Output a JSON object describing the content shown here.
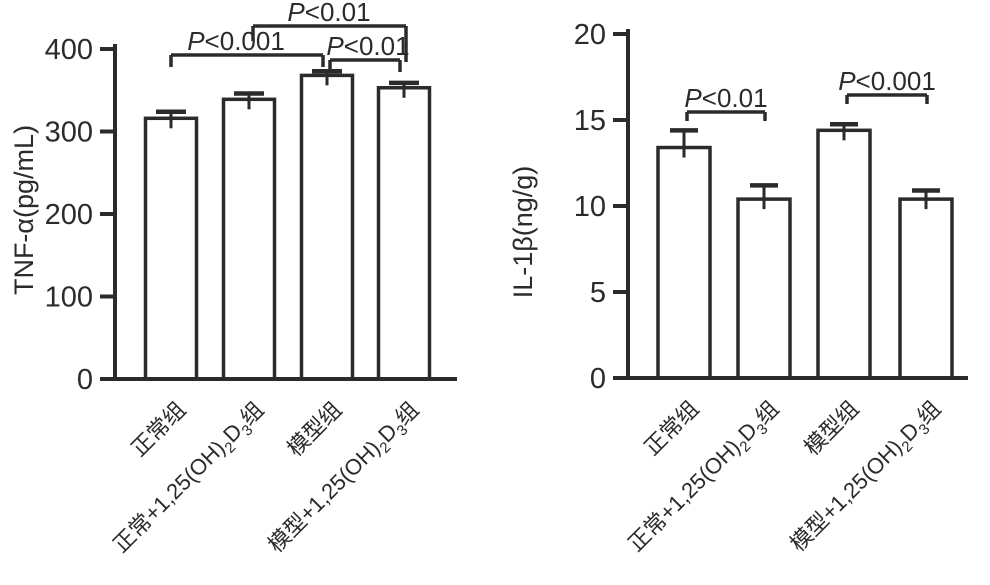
{
  "page": {
    "background": "#ffffff",
    "ink_color": "#2b2b2b",
    "bar_fill": "#ffffff"
  },
  "chart_data": [
    {
      "type": "bar",
      "title": "",
      "ylabel": "TNF-α(pg/mL)",
      "xlabel": "",
      "ylim": [
        0,
        400
      ],
      "yticks": [
        0,
        100,
        200,
        300,
        400
      ],
      "grid": false,
      "legend": null,
      "categories": [
        "正常组",
        "正常+1,25(OH)₂D₃组",
        "模型组",
        "模型+1,25(OH)₂D₃组"
      ],
      "values": [
        316,
        339,
        368,
        353
      ],
      "errors_plus": [
        8,
        7,
        5,
        6
      ],
      "significance": [
        {
          "label": "P<0.001",
          "from": 0,
          "to": 2
        },
        {
          "label": "P<0.01",
          "from": 2,
          "to": 3
        },
        {
          "label": "P<0.01",
          "from": 1,
          "to": 3
        }
      ]
    },
    {
      "type": "bar",
      "title": "",
      "ylabel": "IL-1β(ng/g)",
      "xlabel": "",
      "ylim": [
        0,
        20
      ],
      "yticks": [
        0,
        5,
        10,
        15,
        20
      ],
      "grid": false,
      "legend": null,
      "categories": [
        "正常组",
        "正常+1,25(OH)₂D₃组",
        "模型组",
        "模型+1,25(OH)₂D₃组"
      ],
      "values": [
        13.4,
        10.4,
        14.4,
        10.4
      ],
      "errors_plus": [
        1.0,
        0.8,
        0.35,
        0.5
      ],
      "significance": [
        {
          "label": "P<0.01",
          "from": 0,
          "to": 1
        },
        {
          "label": "P<0.001",
          "from": 2,
          "to": 3
        }
      ]
    }
  ]
}
